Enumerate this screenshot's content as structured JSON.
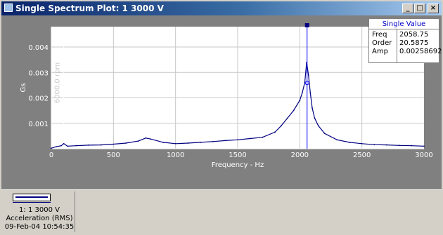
{
  "window": {
    "title": "Single Spectrum Plot: 1 3000 V",
    "buttons": {
      "minimize": "_",
      "maximize": "□",
      "close": "×"
    }
  },
  "single_value": {
    "title": "Single Value",
    "rows": [
      {
        "label": "Freq",
        "value": "2058.75"
      },
      {
        "label": "Order",
        "value": "20.5875"
      },
      {
        "label": "Amp",
        "value": "0.00258692"
      }
    ]
  },
  "legend": {
    "channel": "1: 1 3000 V",
    "measurement": "Acceleration (RMS)",
    "timestamp": "09-Feb-04 10:54:35"
  },
  "colors": {
    "plot_background": "#ffffff",
    "trace": "#000080",
    "cursor": "#0000ff",
    "marker_line": "#ffffff"
  },
  "chart_data": {
    "type": "line",
    "title": "",
    "xlabel": "Frequency - Hz",
    "ylabel": "Gs",
    "xlim": [
      0,
      3000
    ],
    "ylim": [
      0,
      0.0048
    ],
    "x_ticks": [
      0,
      500,
      1000,
      1500,
      2000,
      2500,
      3000
    ],
    "y_ticks": [
      0.001,
      0.002,
      0.003,
      0.004
    ],
    "y_tick_labels": [
      "0.001",
      "0.002",
      "0.003",
      "0.004"
    ],
    "grid": true,
    "annotations": [
      {
        "text": "6000.0 rpm",
        "x": 100
      }
    ],
    "cursor": {
      "x": 2058.75,
      "y": 0.00258692
    },
    "series": [
      {
        "x": [
          0,
          40,
          80,
          100,
          130,
          200,
          300,
          400,
          500,
          600,
          700,
          760,
          800,
          900,
          1000,
          1100,
          1200,
          1300,
          1400,
          1500,
          1600,
          1700,
          1800,
          1850,
          1900,
          1950,
          2000,
          2020,
          2040,
          2055,
          2070,
          2085,
          2100,
          2120,
          2150,
          2200,
          2300,
          2400,
          2500,
          2600,
          2700,
          2800,
          2900,
          3000
        ],
        "values": [
          2e-05,
          8e-05,
          0.00012,
          0.0002,
          0.0001,
          0.00012,
          0.00014,
          0.00015,
          0.00018,
          0.00022,
          0.0003,
          0.00042,
          0.00038,
          0.00025,
          0.0002,
          0.00022,
          0.00025,
          0.00028,
          0.00032,
          0.00035,
          0.0004,
          0.00045,
          0.00065,
          0.0009,
          0.0012,
          0.0015,
          0.0019,
          0.0022,
          0.0026,
          0.0034,
          0.0029,
          0.0022,
          0.0016,
          0.0012,
          0.0009,
          0.0006,
          0.00035,
          0.00025,
          0.0002,
          0.00016,
          0.00015,
          0.00013,
          0.00012,
          0.0001
        ]
      }
    ]
  }
}
